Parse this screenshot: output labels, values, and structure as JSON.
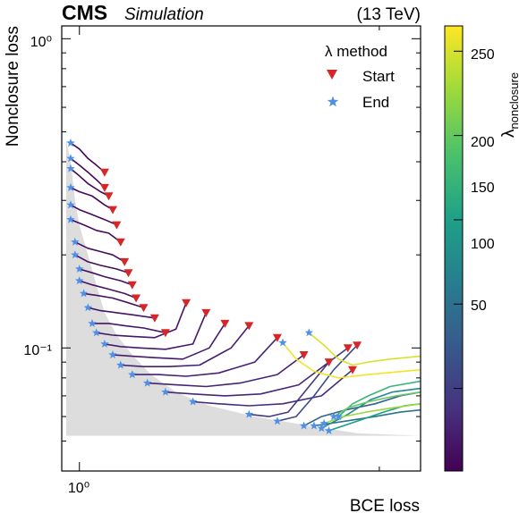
{
  "header": {
    "experiment": "CMS",
    "status": "Simulation",
    "energy": "(13 TeV)"
  },
  "colors": {
    "start_marker": "#d62728",
    "end_marker": "#4f8fe6",
    "shade": "#dddddd",
    "colormap": [
      "#440154",
      "#46327e",
      "#365c8d",
      "#277f8e",
      "#1fa187",
      "#4ac16d",
      "#a0da39",
      "#fde725"
    ]
  },
  "chart_data": {
    "type": "line",
    "xlabel": "BCE loss",
    "ylabel": "Nonclosure loss",
    "xscale": "log",
    "yscale": "log",
    "xlim": [
      0.96,
      2.2
    ],
    "ylim": [
      0.04,
      1.1
    ],
    "x_tick_labels": [
      {
        "value": 1.0,
        "label": "10⁰"
      }
    ],
    "y_tick_labels": [
      {
        "value": 1.0,
        "label": "10⁰"
      },
      {
        "value": 0.1,
        "label": "10⁻¹"
      }
    ],
    "legend": {
      "title": "λ method",
      "entries": [
        {
          "label": "Start",
          "marker": "triangle-down",
          "color": "#d62728"
        },
        {
          "label": "End",
          "marker": "star",
          "color": "#4f8fe6"
        }
      ],
      "position": "top-right"
    },
    "colorbar": {
      "label": "λ",
      "label_subscript": "nonclosure",
      "range": [
        1,
        265
      ],
      "ticks": [
        {
          "value": 50,
          "label": "50"
        },
        {
          "value": 100,
          "label": "100"
        },
        {
          "value": 150,
          "label": "150"
        },
        {
          "value": 200,
          "label": "200"
        },
        {
          "value": 250,
          "label": "250"
        }
      ]
    },
    "shaded_region": {
      "boundary": [
        [
          0.97,
          0.47
        ],
        [
          0.98,
          0.4
        ],
        [
          0.99,
          0.3
        ],
        [
          1.0,
          0.25
        ],
        [
          1.02,
          0.2
        ],
        [
          1.04,
          0.16
        ],
        [
          1.06,
          0.13
        ],
        [
          1.09,
          0.11
        ],
        [
          1.13,
          0.095
        ],
        [
          1.18,
          0.082
        ],
        [
          1.25,
          0.072
        ],
        [
          1.35,
          0.065
        ],
        [
          1.5,
          0.06
        ],
        [
          1.7,
          0.056
        ],
        [
          1.9,
          0.053
        ],
        [
          2.2,
          0.052
        ]
      ],
      "floor": 0.052
    },
    "series": [
      {
        "lambda": 3,
        "values": [
          [
            0.98,
            0.46
          ],
          [
            1.0,
            0.44
          ],
          [
            1.02,
            0.41
          ],
          [
            1.04,
            0.39
          ],
          [
            1.06,
            0.37
          ]
        ]
      },
      {
        "lambda": 4,
        "values": [
          [
            0.98,
            0.41
          ],
          [
            1.0,
            0.39
          ],
          [
            1.02,
            0.37
          ],
          [
            1.04,
            0.35
          ],
          [
            1.06,
            0.33
          ]
        ]
      },
      {
        "lambda": 5,
        "values": [
          [
            0.98,
            0.38
          ],
          [
            1.0,
            0.36
          ],
          [
            1.02,
            0.34
          ],
          [
            1.05,
            0.32
          ],
          [
            1.07,
            0.31
          ]
        ]
      },
      {
        "lambda": 6,
        "values": [
          [
            0.98,
            0.33
          ],
          [
            1.0,
            0.32
          ],
          [
            1.03,
            0.31
          ],
          [
            1.06,
            0.29
          ],
          [
            1.08,
            0.28
          ]
        ]
      },
      {
        "lambda": 7,
        "values": [
          [
            0.98,
            0.29
          ],
          [
            1.0,
            0.28
          ],
          [
            1.03,
            0.27
          ],
          [
            1.06,
            0.26
          ],
          [
            1.09,
            0.25
          ]
        ]
      },
      {
        "lambda": 8,
        "values": [
          [
            0.98,
            0.26
          ],
          [
            1.01,
            0.25
          ],
          [
            1.04,
            0.24
          ],
          [
            1.07,
            0.235
          ],
          [
            1.1,
            0.22
          ]
        ]
      },
      {
        "lambda": 10,
        "values": [
          [
            0.99,
            0.22
          ],
          [
            1.02,
            0.21
          ],
          [
            1.05,
            0.205
          ],
          [
            1.08,
            0.2
          ],
          [
            1.11,
            0.19
          ]
        ]
      },
      {
        "lambda": 11,
        "values": [
          [
            0.99,
            0.2
          ],
          [
            1.02,
            0.19
          ],
          [
            1.05,
            0.185
          ],
          [
            1.09,
            0.18
          ],
          [
            1.12,
            0.175
          ]
        ]
      },
      {
        "lambda": 12,
        "values": [
          [
            1.0,
            0.18
          ],
          [
            1.03,
            0.175
          ],
          [
            1.06,
            0.17
          ],
          [
            1.1,
            0.165
          ],
          [
            1.13,
            0.16
          ]
        ]
      },
      {
        "lambda": 13,
        "values": [
          [
            1.0,
            0.165
          ],
          [
            1.03,
            0.16
          ],
          [
            1.07,
            0.155
          ],
          [
            1.11,
            0.15
          ],
          [
            1.14,
            0.145
          ]
        ]
      },
      {
        "lambda": 14,
        "values": [
          [
            1.01,
            0.15
          ],
          [
            1.04,
            0.148
          ],
          [
            1.08,
            0.145
          ],
          [
            1.12,
            0.14
          ],
          [
            1.16,
            0.135
          ]
        ]
      },
      {
        "lambda": 15,
        "values": [
          [
            1.02,
            0.135
          ],
          [
            1.05,
            0.132
          ],
          [
            1.09,
            0.13
          ],
          [
            1.13,
            0.128
          ],
          [
            1.19,
            0.125
          ]
        ]
      },
      {
        "lambda": 17,
        "values": [
          [
            1.03,
            0.12
          ],
          [
            1.07,
            0.12
          ],
          [
            1.11,
            0.118
          ],
          [
            1.16,
            0.116
          ],
          [
            1.22,
            0.112
          ]
        ]
      },
      {
        "lambda": 18,
        "values": [
          [
            1.04,
            0.112
          ],
          [
            1.08,
            0.11
          ],
          [
            1.13,
            0.109
          ],
          [
            1.19,
            0.108
          ],
          [
            1.25,
            0.115
          ],
          [
            1.28,
            0.14
          ]
        ]
      },
      {
        "lambda": 20,
        "values": [
          [
            1.06,
            0.103
          ],
          [
            1.1,
            0.101
          ],
          [
            1.15,
            0.1
          ],
          [
            1.22,
            0.099
          ],
          [
            1.3,
            0.103
          ],
          [
            1.34,
            0.13
          ]
        ]
      },
      {
        "lambda": 22,
        "values": [
          [
            1.08,
            0.095
          ],
          [
            1.13,
            0.094
          ],
          [
            1.19,
            0.093
          ],
          [
            1.27,
            0.092
          ],
          [
            1.35,
            0.1
          ],
          [
            1.4,
            0.12
          ]
        ]
      },
      {
        "lambda": 24,
        "values": [
          [
            1.1,
            0.088
          ],
          [
            1.16,
            0.087
          ],
          [
            1.23,
            0.087
          ],
          [
            1.32,
            0.088
          ],
          [
            1.42,
            0.1
          ],
          [
            1.48,
            0.118
          ]
        ]
      },
      {
        "lambda": 26,
        "values": [
          [
            1.13,
            0.082
          ],
          [
            1.2,
            0.082
          ],
          [
            1.28,
            0.081
          ],
          [
            1.38,
            0.083
          ],
          [
            1.5,
            0.09
          ],
          [
            1.58,
            0.108
          ]
        ]
      },
      {
        "lambda": 28,
        "values": [
          [
            1.17,
            0.077
          ],
          [
            1.25,
            0.076
          ],
          [
            1.34,
            0.075
          ],
          [
            1.45,
            0.077
          ],
          [
            1.58,
            0.082
          ],
          [
            1.68,
            0.095
          ]
        ]
      },
      {
        "lambda": 30,
        "values": [
          [
            1.22,
            0.072
          ],
          [
            1.3,
            0.071
          ],
          [
            1.4,
            0.07
          ],
          [
            1.52,
            0.071
          ],
          [
            1.66,
            0.076
          ],
          [
            1.78,
            0.09
          ]
        ]
      },
      {
        "lambda": 35,
        "values": [
          [
            1.3,
            0.067
          ],
          [
            1.38,
            0.066
          ],
          [
            1.48,
            0.065
          ],
          [
            1.6,
            0.066
          ],
          [
            1.75,
            0.07
          ],
          [
            1.88,
            0.085
          ]
        ]
      },
      {
        "lambda": 45,
        "values": [
          [
            1.48,
            0.061
          ],
          [
            1.55,
            0.06
          ],
          [
            1.62,
            0.062
          ],
          [
            1.7,
            0.075
          ],
          [
            1.78,
            0.09
          ],
          [
            1.86,
            0.1
          ]
        ]
      },
      {
        "lambda": 60,
        "values": [
          [
            1.58,
            0.058
          ],
          [
            1.65,
            0.06
          ],
          [
            1.72,
            0.07
          ],
          [
            1.8,
            0.085
          ],
          [
            1.9,
            0.102
          ]
        ]
      },
      {
        "lambda": 80,
        "values": [
          [
            1.68,
            0.056
          ],
          [
            1.75,
            0.06
          ],
          [
            1.85,
            0.063
          ],
          [
            1.98,
            0.066
          ],
          [
            2.1,
            0.07
          ],
          [
            2.2,
            0.072
          ]
        ]
      },
      {
        "lambda": 100,
        "values": [
          [
            1.72,
            0.056
          ],
          [
            1.85,
            0.058
          ],
          [
            1.98,
            0.06
          ],
          [
            2.1,
            0.062
          ],
          [
            2.2,
            0.063
          ]
        ]
      },
      {
        "lambda": 125,
        "values": [
          [
            1.75,
            0.055
          ],
          [
            1.86,
            0.061
          ],
          [
            1.96,
            0.068
          ],
          [
            2.06,
            0.072
          ],
          [
            2.2,
            0.074
          ]
        ]
      },
      {
        "lambda": 150,
        "values": [
          [
            1.78,
            0.054
          ],
          [
            1.9,
            0.058
          ],
          [
            2.02,
            0.062
          ],
          [
            2.12,
            0.065
          ],
          [
            2.2,
            0.066
          ]
        ]
      },
      {
        "lambda": 175,
        "values": [
          [
            1.82,
            0.06
          ],
          [
            1.88,
            0.066
          ],
          [
            1.95,
            0.07
          ],
          [
            2.05,
            0.075
          ],
          [
            2.2,
            0.078
          ]
        ]
      },
      {
        "lambda": 200,
        "values": [
          [
            1.8,
            0.06
          ],
          [
            1.86,
            0.064
          ],
          [
            1.95,
            0.067
          ],
          [
            2.08,
            0.07
          ],
          [
            2.2,
            0.072
          ]
        ]
      },
      {
        "lambda": 225,
        "values": [
          [
            1.76,
            0.057
          ],
          [
            1.84,
            0.06
          ],
          [
            1.94,
            0.062
          ],
          [
            2.06,
            0.064
          ],
          [
            2.2,
            0.066
          ]
        ]
      },
      {
        "lambda": 250,
        "values": [
          [
            1.7,
            0.112
          ],
          [
            1.76,
            0.102
          ],
          [
            1.82,
            0.092
          ],
          [
            1.88,
            0.088
          ],
          [
            1.95,
            0.09
          ],
          [
            2.05,
            0.092
          ],
          [
            2.2,
            0.094
          ]
        ]
      },
      {
        "lambda": 260,
        "values": [
          [
            1.6,
            0.104
          ],
          [
            1.65,
            0.092
          ],
          [
            1.72,
            0.084
          ],
          [
            1.82,
            0.08
          ],
          [
            1.95,
            0.082
          ],
          [
            2.2,
            0.085
          ]
        ]
      }
    ]
  }
}
